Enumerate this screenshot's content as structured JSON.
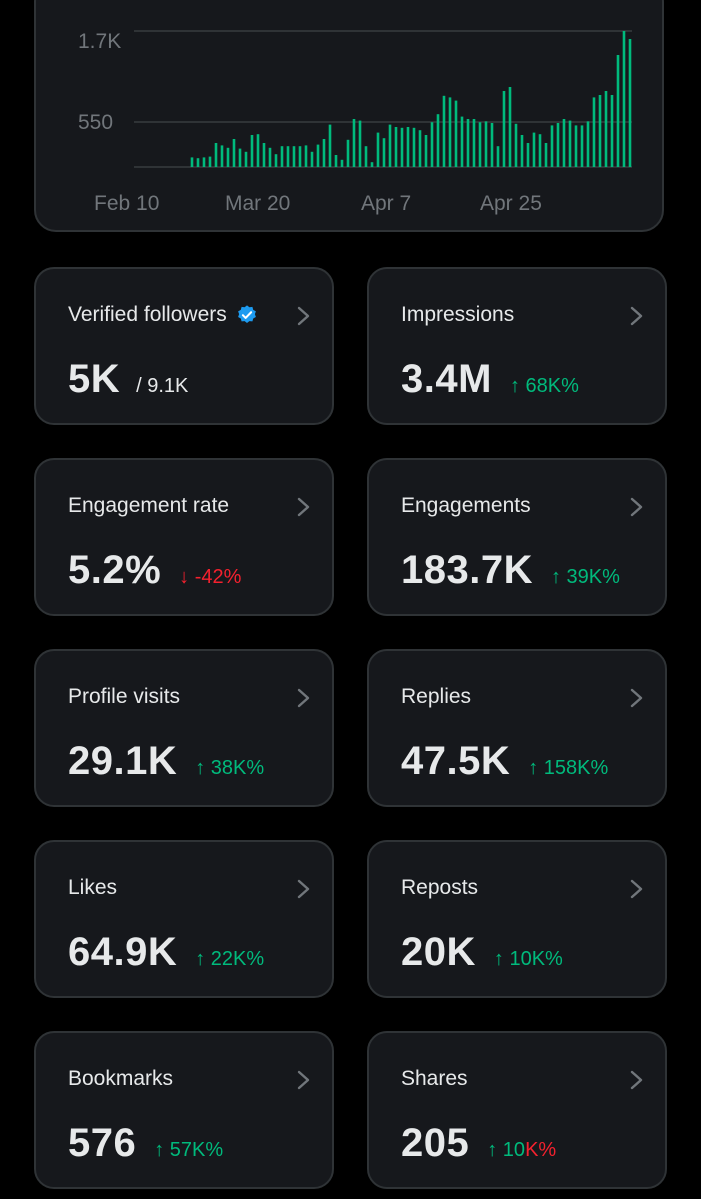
{
  "chart": {
    "y_ticks": [
      "1.7K",
      "550"
    ],
    "x_ticks": [
      "Feb 10",
      "Mar 20",
      "Apr 7",
      "Apr 25"
    ],
    "bar_color": "#00ba7c"
  },
  "chart_data": {
    "type": "bar",
    "title": "",
    "xlabel": "",
    "ylabel": "",
    "ylim": [
      0,
      1700
    ],
    "x_tick_labels": [
      "Feb 10",
      "Mar 20",
      "Apr 7",
      "Apr 25"
    ],
    "y_tick_labels": [
      "550",
      "1.7K"
    ],
    "grid": true,
    "values": [
      120,
      110,
      120,
      130,
      300,
      270,
      240,
      350,
      230,
      190,
      400,
      410,
      300,
      240,
      160,
      260,
      260,
      260,
      260,
      270,
      190,
      280,
      350,
      530,
      150,
      90,
      340,
      600,
      580,
      260,
      60,
      430,
      360,
      530,
      500,
      490,
      500,
      490,
      460,
      400,
      560,
      660,
      890,
      870,
      830,
      630,
      600,
      600,
      560,
      570,
      550,
      260,
      950,
      1000,
      540,
      400,
      300,
      430,
      410,
      300,
      520,
      550,
      600,
      580,
      520,
      520,
      570,
      870,
      900,
      950,
      900,
      1400,
      1700,
      1600
    ]
  },
  "cards": [
    {
      "title": "Verified followers",
      "value": "5K",
      "sub": "/ 9.1K",
      "verified": true
    },
    {
      "title": "Impressions",
      "value": "3.4M",
      "change": "↑ 68K%",
      "direction": "up"
    },
    {
      "title": "Engagement rate",
      "value": "5.2%",
      "change": "↓ -42%",
      "direction": "down"
    },
    {
      "title": "Engagements",
      "value": "183.7K",
      "change": "↑ 39K%",
      "direction": "up"
    },
    {
      "title": "Profile visits",
      "value": "29.1K",
      "change": "↑ 38K%",
      "direction": "up"
    },
    {
      "title": "Replies",
      "value": "47.5K",
      "change": "↑ 158K%",
      "direction": "up"
    },
    {
      "title": "Likes",
      "value": "64.9K",
      "change": "↑ 22K%",
      "direction": "up"
    },
    {
      "title": "Reposts",
      "value": "20K",
      "change": "↑ 10K%",
      "direction": "up"
    },
    {
      "title": "Bookmarks",
      "value": "576",
      "change": "↑ 57K%",
      "direction": "up"
    },
    {
      "title": "Shares",
      "value": "205",
      "change_up": "↑ 10",
      "change_red": "K%",
      "direction": "mixed"
    }
  ],
  "icons": {
    "verified": "verified-badge-icon",
    "chevron": "chevron-right-icon"
  },
  "colors": {
    "up": "#00ba7c",
    "down": "#f4212e",
    "verified": "#1d9bf0"
  }
}
